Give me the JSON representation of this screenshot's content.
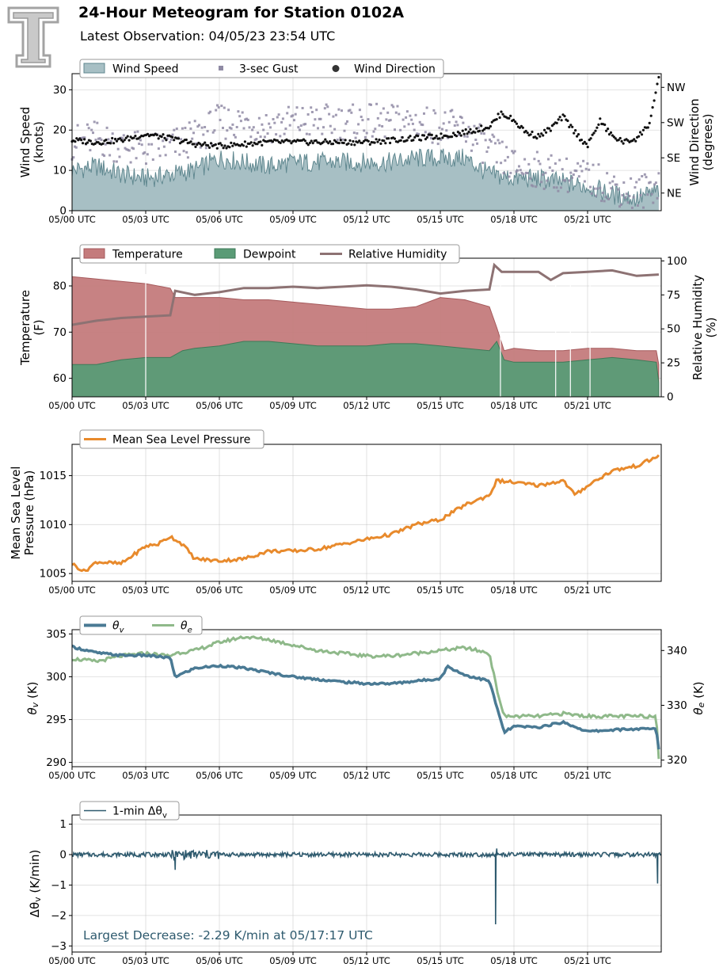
{
  "header": {
    "title": "24-Hour Meteogram for Station 0102A",
    "subtitle": "Latest Observation: 04/05/23 23:54 UTC",
    "logo_icon": "texas-tech-double-t-logo-icon"
  },
  "x_ticks": [
    "05/00 UTC",
    "05/03 UTC",
    "05/06 UTC",
    "05/09 UTC",
    "05/12 UTC",
    "05/15 UTC",
    "05/18 UTC",
    "05/21 UTC"
  ],
  "colors": {
    "wind_speed": "#a7bfc4",
    "wind_line": "#5f878f",
    "gust": "#8f8aa4",
    "direction": "#111111",
    "temperature": "#c47b7c",
    "dewpoint": "#5a9b76",
    "rh": "#8d7273",
    "mslp": "#e88a2c",
    "theta_v": "#4a7a94",
    "theta_e": "#8fb98a",
    "dtheta": "#2e5a6e",
    "annotation": "#2e5a6e"
  },
  "chart_data": [
    {
      "type": "area",
      "ylabel": "Wind Speed\n(knots)",
      "y2label": "Wind Direction\n(degrees)",
      "ylim": [
        0,
        34
      ],
      "yticks": [
        0,
        10,
        20,
        30
      ],
      "y2_ticks": [
        "NE",
        "SE",
        "SW",
        "NW"
      ],
      "y2_tick_values": [
        45,
        135,
        225,
        315
      ],
      "y2lim": [
        0,
        350
      ],
      "legend": [
        "Wind Speed",
        "3-sec Gust",
        "Wind Direction"
      ],
      "grid": true,
      "series": [
        {
          "name": "Wind Speed",
          "x": [
            0,
            1,
            2,
            3,
            4,
            5,
            6,
            7,
            8,
            9,
            10,
            11,
            12,
            13,
            14,
            15,
            16,
            17,
            18,
            19,
            20,
            21,
            22,
            23,
            23.9
          ],
          "values": [
            10,
            11,
            9,
            8,
            9,
            10,
            13,
            12,
            11,
            12,
            12,
            12,
            12,
            12,
            13,
            13,
            13,
            9,
            8,
            8,
            7,
            6,
            4,
            3,
            5
          ]
        },
        {
          "name": "3-sec Gust",
          "x": [
            0,
            1,
            2,
            3,
            4,
            5,
            6,
            7,
            8,
            9,
            10,
            11,
            12,
            13,
            14,
            15,
            16,
            17,
            18,
            19,
            20,
            21,
            22,
            23,
            23.9
          ],
          "values": [
            17,
            18,
            16,
            15,
            16,
            18,
            22,
            22,
            21,
            22,
            22,
            22,
            22,
            22,
            22,
            21,
            20,
            15,
            11,
            10,
            9,
            8,
            6,
            4,
            7
          ]
        },
        {
          "name": "Wind Direction",
          "x": [
            0,
            1,
            2,
            3,
            4,
            5,
            6,
            7,
            8,
            9,
            10,
            11,
            12,
            13,
            14,
            15,
            16,
            17,
            17.5,
            18,
            18.5,
            19,
            19.5,
            20,
            20.5,
            21,
            21.5,
            22,
            22.5,
            23,
            23.5,
            23.9
          ],
          "values": [
            180,
            175,
            180,
            195,
            185,
            170,
            165,
            170,
            175,
            175,
            175,
            175,
            175,
            180,
            185,
            190,
            200,
            215,
            250,
            230,
            200,
            190,
            210,
            240,
            200,
            165,
            230,
            190,
            175,
            185,
            220,
            335
          ]
        }
      ]
    },
    {
      "type": "area",
      "ylabel": "Temperature\n(F)",
      "y2label": "Relative Humidity\n(%)",
      "ylim": [
        56,
        86
      ],
      "yticks": [
        60,
        70,
        80
      ],
      "y2lim": [
        0,
        102
      ],
      "y2ticks": [
        0,
        25,
        50,
        75,
        100
      ],
      "legend": [
        "Temperature",
        "Dewpoint",
        "Relative Humidity"
      ],
      "grid": true,
      "series": [
        {
          "name": "Temperature",
          "x": [
            0,
            1,
            2,
            3,
            4,
            4.2,
            5,
            6,
            7,
            8,
            9,
            10,
            11,
            12,
            13,
            14,
            15,
            16,
            17,
            17.3,
            17.6,
            18,
            19,
            20,
            21,
            22,
            23,
            23.8,
            23.9
          ],
          "values": [
            82,
            81.5,
            81,
            80.5,
            79.5,
            77.5,
            77.5,
            77.5,
            77,
            77,
            76.5,
            76,
            75.5,
            75,
            75,
            75.5,
            77.5,
            77,
            75.5,
            71,
            66,
            66.5,
            66,
            66,
            66.5,
            66.5,
            66,
            66,
            63
          ]
        },
        {
          "name": "Dewpoint",
          "x": [
            0,
            1,
            2,
            3,
            4,
            4.5,
            5,
            6,
            7,
            8,
            9,
            10,
            11,
            12,
            13,
            14,
            15,
            16,
            17,
            17.3,
            17.6,
            18,
            19,
            20,
            21,
            22,
            23,
            23.8,
            23.9
          ],
          "values": [
            63,
            63,
            64,
            64.5,
            64.5,
            66,
            66.5,
            67,
            68,
            68,
            67.5,
            67,
            67,
            67,
            67.5,
            67.5,
            67,
            66.5,
            66,
            68,
            64,
            63.5,
            63.5,
            63.5,
            64,
            64.5,
            64,
            63.5,
            59
          ]
        },
        {
          "name": "Relative Humidity",
          "x": [
            0,
            1,
            2,
            3,
            4,
            4.2,
            5,
            6,
            7,
            8,
            9,
            10,
            11,
            12,
            13,
            14,
            15,
            16,
            17,
            17.2,
            17.5,
            18,
            19,
            19.5,
            20,
            21,
            22,
            23,
            23.9
          ],
          "values": [
            53,
            56,
            58,
            59,
            60,
            78,
            75,
            77,
            80,
            80,
            81,
            80,
            81,
            82,
            81,
            79,
            76,
            78,
            79,
            97,
            92,
            92,
            92,
            86,
            91,
            92,
            93,
            89,
            90
          ]
        }
      ]
    },
    {
      "type": "line",
      "ylabel": "Mean Sea Level\nPressure (hPa)",
      "ylim": [
        1004.2,
        1018.2
      ],
      "yticks": [
        1005,
        1010,
        1015
      ],
      "legend": [
        "Mean Sea Level Pressure"
      ],
      "grid": true,
      "series": [
        {
          "name": "Mean Sea Level Pressure",
          "x": [
            0,
            0.5,
            1,
            2,
            3,
            3.5,
            4,
            4.5,
            5,
            6,
            7,
            8,
            9,
            10,
            11,
            12,
            13,
            14,
            15,
            16,
            17,
            17.3,
            18,
            19,
            20,
            20.5,
            21,
            22,
            23,
            23.9
          ],
          "values": [
            1006,
            1005.2,
            1006.2,
            1006,
            1007.8,
            1008,
            1008.8,
            1008,
            1006.5,
            1006.3,
            1006.5,
            1007.3,
            1007.3,
            1007.5,
            1008,
            1008.5,
            1009,
            1010,
            1010.5,
            1012,
            1013,
            1014.5,
            1014.3,
            1014,
            1014.5,
            1013,
            1014,
            1015.5,
            1016,
            1017
          ]
        }
      ]
    },
    {
      "type": "line",
      "ylabel": "θv (K)",
      "y2label": "θe (K)",
      "ylim": [
        289.5,
        305.5
      ],
      "yticks": [
        290,
        295,
        300,
        305
      ],
      "y2lim": [
        318.8,
        343.8
      ],
      "y2ticks": [
        320,
        330,
        340
      ],
      "legend": [
        "θv",
        "θe"
      ],
      "grid": true,
      "series": [
        {
          "name": "θv",
          "x": [
            0,
            1,
            2,
            3,
            4,
            4.2,
            5,
            6,
            7,
            8,
            9,
            10,
            11,
            12,
            13,
            14,
            15,
            15.3,
            16,
            17,
            17.3,
            17.6,
            18,
            19,
            20,
            21,
            22,
            23,
            23.8,
            23.9
          ],
          "values": [
            303.5,
            302.8,
            302.5,
            302.5,
            302.2,
            300,
            301,
            301.3,
            301,
            300.5,
            300,
            299.7,
            299.4,
            299.2,
            299.2,
            299.5,
            299.8,
            301.2,
            300.2,
            299.5,
            296.5,
            293.5,
            294.2,
            294.1,
            294.7,
            293.6,
            293.8,
            293.9,
            293.9,
            291.5
          ]
        },
        {
          "name": "θe",
          "x": [
            0,
            1,
            2,
            3,
            4,
            4.2,
            5,
            6,
            7,
            8,
            9,
            10,
            11,
            12,
            13,
            14,
            15,
            16,
            17,
            17.3,
            17.6,
            18,
            19,
            20,
            21,
            22,
            23,
            23.8,
            23.9
          ],
          "values": [
            338.5,
            338,
            339,
            339.5,
            339,
            339.5,
            340,
            341.5,
            342.5,
            342,
            341,
            340,
            339.5,
            339,
            339,
            339.5,
            340,
            340.5,
            339.5,
            333,
            328,
            328,
            328,
            328.5,
            328,
            328,
            328,
            328,
            320.5
          ]
        }
      ]
    },
    {
      "type": "line",
      "ylabel": "Δθv (K/min)",
      "ylim": [
        -3.2,
        1.3
      ],
      "yticks": [
        -3,
        -2,
        -1,
        0,
        1
      ],
      "legend": [
        "1-min Δθv"
      ],
      "annotation": "Largest Decrease: -2.29 K/min at 05/17:17 UTC",
      "grid": true,
      "series": [
        {
          "name": "1-min Δθv",
          "x": [
            0,
            4.2,
            4.3,
            5.2,
            17.2,
            17.25,
            17.3,
            23.8,
            23.85,
            23.9
          ],
          "values": [
            0,
            -0.5,
            0,
            0,
            0,
            -2.29,
            0.2,
            0,
            -0.95,
            0
          ]
        }
      ]
    }
  ]
}
